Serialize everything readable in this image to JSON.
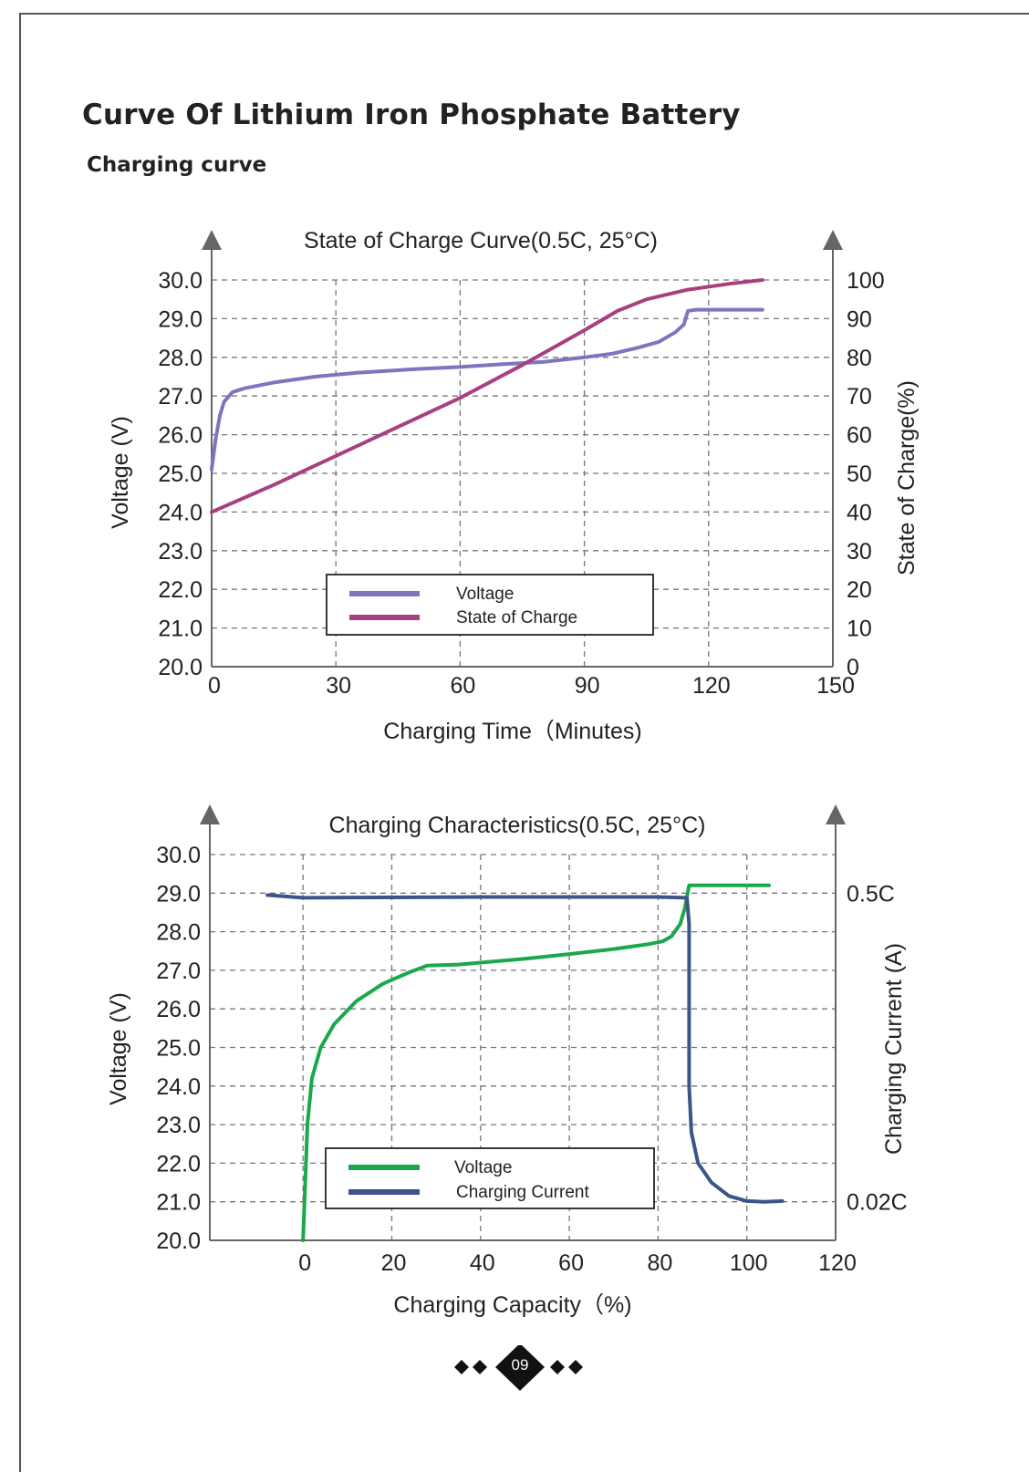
{
  "page": {
    "title": "Curve Of Lithium Iron Phosphate Battery",
    "subtitle": "Charging curve",
    "page_number": "09"
  },
  "colors": {
    "voltage_purple": "#7b76be",
    "soc_magenta": "#a8407f",
    "voltage_green": "#19a84a",
    "current_navy": "#3d5487",
    "grid": "#777777",
    "axis": "#666666"
  },
  "chart_data": [
    {
      "type": "line",
      "title": "State of Charge Curve(0.5C, 25°C)",
      "xlabel": "Charging Time（Minutes)",
      "ylabel": "Voltage (V)",
      "y2label": "State of Charge(%)",
      "xlim": [
        0,
        150
      ],
      "ylim": [
        20,
        30
      ],
      "y2lim": [
        0,
        100
      ],
      "x_ticks": [
        "0",
        "30",
        "60",
        "90",
        "120",
        "150"
      ],
      "y_ticks": [
        "20.0",
        "21.0",
        "22.0",
        "23.0",
        "24.0",
        "25.0",
        "26.0",
        "27.0",
        "28.0",
        "29.0",
        "30.0"
      ],
      "y2_ticks": [
        "0",
        "10",
        "20",
        "30",
        "40",
        "50",
        "60",
        "70",
        "80",
        "90",
        "100"
      ],
      "grid": true,
      "legend": [
        "Voltage",
        "State of Charge"
      ],
      "legend_position": "bottom-center",
      "series": [
        {
          "name": "Voltage",
          "axis": "left",
          "color": "#7b76be",
          "points": [
            [
              0,
              25.1
            ],
            [
              1,
              25.9
            ],
            [
              2,
              26.5
            ],
            [
              3,
              26.85
            ],
            [
              5,
              27.1
            ],
            [
              8,
              27.2
            ],
            [
              15,
              27.35
            ],
            [
              25,
              27.5
            ],
            [
              35,
              27.6
            ],
            [
              50,
              27.7
            ],
            [
              60,
              27.75
            ],
            [
              70,
              27.82
            ],
            [
              80,
              27.88
            ],
            [
              90,
              28.0
            ],
            [
              97,
              28.1
            ],
            [
              103,
              28.25
            ],
            [
              108,
              28.4
            ],
            [
              112,
              28.65
            ],
            [
              114,
              28.85
            ],
            [
              115,
              29.2
            ],
            [
              117,
              29.23
            ],
            [
              133,
              29.23
            ]
          ]
        },
        {
          "name": "State of Charge",
          "axis": "right",
          "color": "#a8407f",
          "points": [
            [
              0,
              40
            ],
            [
              15,
              47
            ],
            [
              30,
              54.5
            ],
            [
              45,
              62
            ],
            [
              60,
              69.5
            ],
            [
              75,
              78
            ],
            [
              90,
              87
            ],
            [
              98,
              92
            ],
            [
              105,
              95
            ],
            [
              115,
              97.5
            ],
            [
              125,
              99
            ],
            [
              133,
              100
            ]
          ]
        }
      ]
    },
    {
      "type": "line",
      "title": "Charging Characteristics(0.5C, 25°C)",
      "xlabel": "Charging Capacity（%)",
      "ylabel": "Voltage (V)",
      "y2label": "Charging Current (A)",
      "xlim": [
        -21,
        120
      ],
      "ylim": [
        20,
        30
      ],
      "x_ticks": [
        "0",
        "20",
        "40",
        "60",
        "80",
        "100",
        "120"
      ],
      "y_ticks": [
        "20.0",
        "21.0",
        "22.0",
        "23.0",
        "24.0",
        "25.0",
        "26.0",
        "27.0",
        "28.0",
        "29.0",
        "30.0"
      ],
      "y2_ticks": [
        "0.02C",
        "0.5C"
      ],
      "grid": true,
      "legend": [
        "Voltage",
        "Charging Current"
      ],
      "legend_position": "bottom-center",
      "series": [
        {
          "name": "Voltage",
          "axis": "left",
          "color": "#19a84a",
          "points": [
            [
              0,
              20.0
            ],
            [
              0.5,
              21.5
            ],
            [
              1,
              23.0
            ],
            [
              2,
              24.2
            ],
            [
              4,
              25.0
            ],
            [
              7,
              25.6
            ],
            [
              12,
              26.2
            ],
            [
              18,
              26.65
            ],
            [
              24,
              26.95
            ],
            [
              28,
              27.12
            ],
            [
              35,
              27.15
            ],
            [
              50,
              27.3
            ],
            [
              60,
              27.42
            ],
            [
              70,
              27.55
            ],
            [
              78,
              27.68
            ],
            [
              81,
              27.75
            ],
            [
              83,
              27.88
            ],
            [
              85,
              28.2
            ],
            [
              86,
              28.6
            ],
            [
              87,
              29.2
            ],
            [
              95,
              29.2
            ],
            [
              105,
              29.2
            ]
          ]
        },
        {
          "name": "Charging Current",
          "axis": "right",
          "color": "#3d5487",
          "points": [
            [
              -8,
              28.95
            ],
            [
              0,
              28.88
            ],
            [
              40,
              28.9
            ],
            [
              80,
              28.9
            ],
            [
              86.5,
              28.88
            ],
            [
              87,
              28.2
            ],
            [
              87,
              26.0
            ],
            [
              87,
              24.0
            ],
            [
              87.5,
              22.8
            ],
            [
              89,
              22.0
            ],
            [
              92,
              21.5
            ],
            [
              96,
              21.15
            ],
            [
              100,
              21.02
            ],
            [
              104,
              21.0
            ],
            [
              108,
              21.02
            ]
          ]
        }
      ]
    }
  ]
}
